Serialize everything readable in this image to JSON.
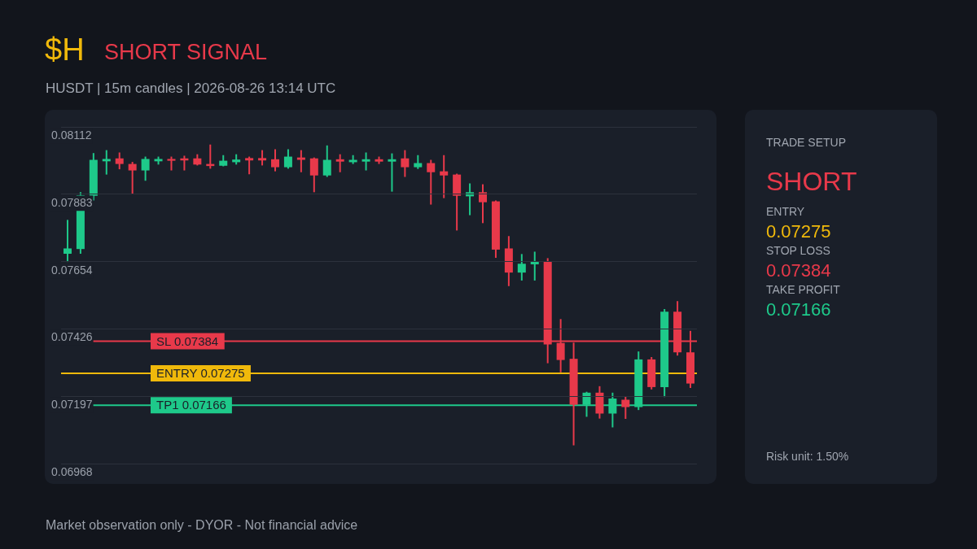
{
  "chart_data": [
    {
      "type": "candlestick",
      "title": "$H",
      "subtitle": "HUSDT | 15m candles | 2026-08-26 13:14 UTC",
      "annotations": [
        "SHORT SIGNAL",
        "Market observation only - DYOR - Not financial advice"
      ],
      "categories": [
        null,
        null,
        null,
        null,
        null,
        null,
        null,
        null,
        null,
        null,
        null,
        null,
        null,
        null,
        null,
        null,
        null,
        null,
        null,
        null,
        null,
        null,
        null,
        null,
        null,
        null,
        null,
        null,
        null,
        null,
        null,
        null,
        null,
        null,
        null,
        null,
        null,
        null,
        null,
        null,
        null,
        null,
        null,
        null,
        null,
        null,
        null,
        null,
        null
      ],
      "ohlc": [
        [
          0.07681,
          0.07796,
          0.07653,
          0.07699
        ],
        [
          0.07697,
          0.0789,
          0.07681,
          0.0788
        ],
        [
          0.07878,
          0.08023,
          0.07862,
          0.08
        ],
        [
          0.07995,
          0.08033,
          0.0795,
          0.08003
        ],
        [
          0.08005,
          0.08025,
          0.07968,
          0.07986
        ],
        [
          0.07986,
          0.07993,
          0.07885,
          0.07964
        ],
        [
          0.07964,
          0.08011,
          0.07929,
          0.08003
        ],
        [
          0.07995,
          0.08011,
          0.07984,
          0.08003
        ],
        [
          0.08003,
          0.08011,
          0.07964,
          0.07997
        ],
        [
          0.08005,
          0.08014,
          0.07964,
          0.07998
        ],
        [
          0.08005,
          0.08019,
          0.07981,
          0.07984
        ],
        [
          0.07986,
          0.08052,
          0.0797,
          0.07979
        ],
        [
          0.0798,
          0.08016,
          0.07978,
          0.07997
        ],
        [
          0.07992,
          0.08019,
          0.07984,
          0.08001
        ],
        [
          0.08006,
          0.08011,
          0.07951,
          0.07998
        ],
        [
          0.08006,
          0.08033,
          0.07981,
          0.07998
        ],
        [
          0.08002,
          0.08036,
          0.07961,
          0.07975
        ],
        [
          0.07975,
          0.08036,
          0.0797,
          0.08011
        ],
        [
          0.08008,
          0.08033,
          0.07958,
          0.08
        ],
        [
          0.08005,
          0.08008,
          0.0789,
          0.07947
        ],
        [
          0.07947,
          0.08049,
          0.07942,
          0.08
        ],
        [
          0.08002,
          0.08019,
          0.07958,
          0.07994
        ],
        [
          0.07992,
          0.08016,
          0.07986,
          0.08
        ],
        [
          0.07994,
          0.08025,
          0.07964,
          0.08002
        ],
        [
          0.08002,
          0.08011,
          0.07986,
          0.07994
        ],
        [
          0.07994,
          0.08022,
          0.07892,
          0.08002
        ],
        [
          0.08005,
          0.08033,
          0.07942,
          0.07975
        ],
        [
          0.07975,
          0.08016,
          0.07969,
          0.07989
        ],
        [
          0.07989,
          0.08,
          0.07848,
          0.07958
        ],
        [
          0.07961,
          0.08016,
          0.0787,
          0.07947
        ],
        [
          0.0795,
          0.07953,
          0.0776,
          0.07878
        ],
        [
          0.07876,
          0.0792,
          0.07812,
          0.0789
        ],
        [
          0.0789,
          0.07917,
          0.07785,
          0.07856
        ],
        [
          0.07859,
          0.07862,
          0.07667,
          0.07695
        ],
        [
          0.07699,
          0.07741,
          0.07571,
          0.07617
        ],
        [
          0.07617,
          0.0768,
          0.0759,
          0.07647
        ],
        [
          0.07645,
          0.07688,
          0.0759,
          0.07655
        ],
        [
          0.07655,
          0.07666,
          0.07309,
          0.07373
        ],
        [
          0.07378,
          0.07459,
          0.07278,
          0.0732
        ],
        [
          0.07324,
          0.07379,
          0.0703,
          0.07168
        ],
        [
          0.07168,
          0.07212,
          0.07127,
          0.07209
        ],
        [
          0.07209,
          0.07231,
          0.07121,
          0.07138
        ],
        [
          0.07138,
          0.07209,
          0.07091,
          0.07189
        ],
        [
          0.07185,
          0.07195,
          0.0712,
          0.0716
        ],
        [
          0.0716,
          0.07349,
          0.0715,
          0.07322
        ],
        [
          0.07322,
          0.0733,
          0.0722,
          0.07228
        ],
        [
          0.07228,
          0.07493,
          0.07194,
          0.07484
        ],
        [
          0.07484,
          0.0752,
          0.07335,
          0.07346
        ],
        [
          0.07346,
          0.07419,
          0.07225,
          0.0724
        ]
      ],
      "ylim": [
        0.06968,
        0.08112
      ],
      "yticks": [
        0.06968,
        0.07197,
        0.07426,
        0.07654,
        0.07883,
        0.08112
      ],
      "grid": "y",
      "tick_labels": "y",
      "ref_lines": [
        {
          "axis": "y",
          "value": 0.07384,
          "label": "SL 0.07384",
          "color": "#e8394a"
        },
        {
          "axis": "y",
          "value": 0.07275,
          "label": "ENTRY 0.07275",
          "color": "#f0b90b"
        },
        {
          "axis": "y",
          "value": 0.07166,
          "label": "TP1 0.07166",
          "color": "#1ec98a"
        }
      ]
    },
    {
      "type": "other",
      "title": "TRADE SETUP",
      "annotations": [
        "SHORT",
        "ENTRY",
        "0.07275",
        "STOP LOSS",
        "0.07384",
        "TAKE PROFIT",
        "0.07166",
        "Risk unit: 1.50%"
      ]
    }
  ]
}
